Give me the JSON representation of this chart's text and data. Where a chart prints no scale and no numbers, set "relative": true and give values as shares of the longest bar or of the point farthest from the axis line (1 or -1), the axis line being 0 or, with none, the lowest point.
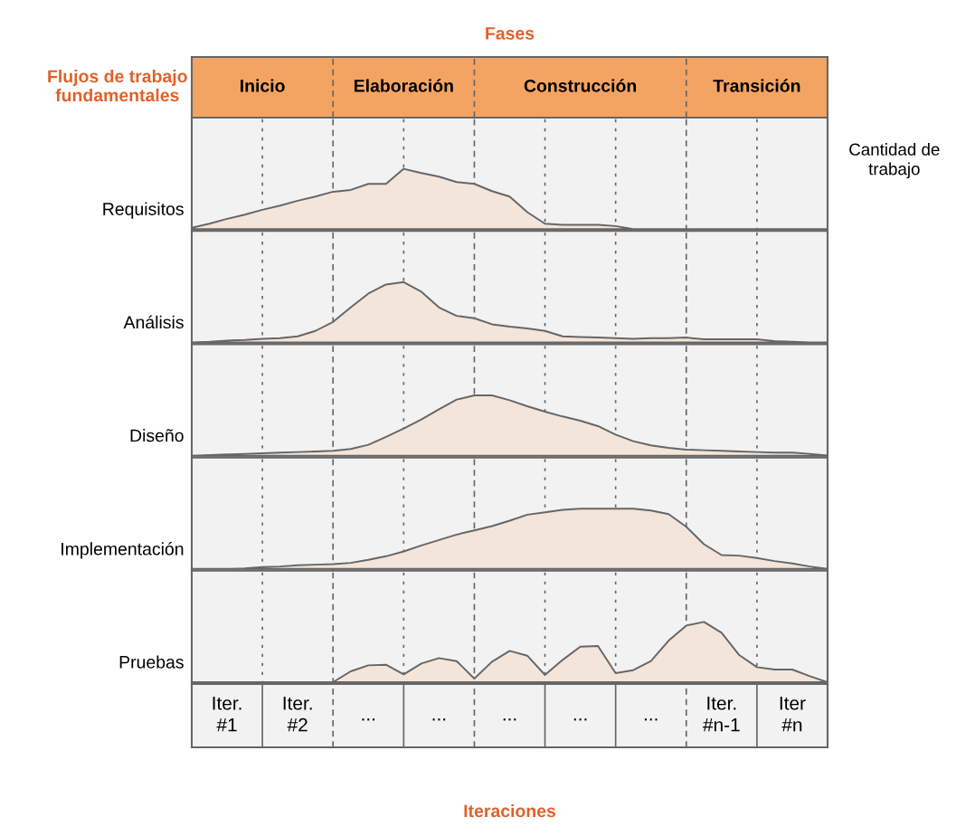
{
  "chart_data": [
    {
      "type": "other",
      "title": "Fases",
      "annotations": [
        "Flujos de trabajo fundamentales",
        "Inicio",
        "Elaboración",
        "Construcción",
        "Transición"
      ]
    },
    {
      "type": "area",
      "relative": true,
      "ylabel": "Requisitos",
      "annotations": [
        "Cantidad de trabajo"
      ],
      "grid": "x",
      "categories": [
        null,
        null,
        null,
        null,
        null,
        null,
        null,
        null,
        null,
        null,
        null,
        null,
        null,
        null,
        null,
        null,
        null,
        null,
        null,
        null,
        null,
        null,
        null,
        null,
        null,
        null,
        null,
        null,
        null,
        null,
        null,
        null,
        null,
        null,
        null,
        null,
        null
      ],
      "series": [
        {
          "color": "#f3e5d9",
          "values": [
            0.02,
            0.09,
            0.17,
            0.24,
            0.32,
            0.39,
            0.47,
            0.54,
            0.62,
            0.65,
            0.75,
            0.75,
            1.0,
            0.93,
            0.87,
            0.78,
            0.75,
            0.63,
            0.54,
            0.28,
            0.09,
            0.07,
            0.07,
            0.07,
            0.05,
            0,
            0,
            0,
            0,
            0,
            0,
            0,
            0,
            0,
            0,
            0,
            0
          ]
        }
      ]
    },
    {
      "type": "area",
      "relative": true,
      "ylabel": "Análisis",
      "grid": "x",
      "categories": [
        null,
        null,
        null,
        null,
        null,
        null,
        null,
        null,
        null,
        null,
        null,
        null,
        null,
        null,
        null,
        null,
        null,
        null,
        null,
        null,
        null,
        null,
        null,
        null,
        null,
        null,
        null,
        null,
        null,
        null,
        null,
        null,
        null,
        null,
        null,
        null,
        null
      ],
      "series": [
        {
          "color": "#f3e5d9",
          "values": [
            0,
            0.01,
            0.03,
            0.04,
            0.06,
            0.07,
            0.1,
            0.19,
            0.34,
            0.58,
            0.81,
            0.96,
            1.0,
            0.84,
            0.58,
            0.44,
            0.4,
            0.3,
            0.26,
            0.23,
            0.19,
            0.1,
            0.09,
            0.08,
            0.07,
            0.06,
            0.07,
            0.07,
            0.08,
            0.05,
            0.05,
            0.05,
            0.05,
            0.02,
            0.01,
            0,
            0
          ]
        }
      ]
    },
    {
      "type": "area",
      "relative": true,
      "ylabel": "Diseño",
      "grid": "x",
      "categories": [
        null,
        null,
        null,
        null,
        null,
        null,
        null,
        null,
        null,
        null,
        null,
        null,
        null,
        null,
        null,
        null,
        null,
        null,
        null,
        null,
        null,
        null,
        null,
        null,
        null,
        null,
        null,
        null,
        null,
        null,
        null,
        null,
        null,
        null,
        null,
        null,
        null
      ],
      "series": [
        {
          "color": "#f3e5d9",
          "values": [
            0,
            0.01,
            0.02,
            0.03,
            0.04,
            0.05,
            0.06,
            0.07,
            0.08,
            0.11,
            0.18,
            0.31,
            0.45,
            0.6,
            0.77,
            0.93,
            1.0,
            1.0,
            0.92,
            0.82,
            0.73,
            0.65,
            0.58,
            0.49,
            0.35,
            0.24,
            0.17,
            0.13,
            0.1,
            0.09,
            0.08,
            0.07,
            0.06,
            0.05,
            0.05,
            0.03,
            0
          ]
        }
      ]
    },
    {
      "type": "area",
      "relative": true,
      "ylabel": "Implementación",
      "grid": "x",
      "categories": [
        null,
        null,
        null,
        null,
        null,
        null,
        null,
        null,
        null,
        null,
        null,
        null,
        null,
        null,
        null,
        null,
        null,
        null,
        null,
        null,
        null,
        null,
        null,
        null,
        null,
        null,
        null,
        null,
        null,
        null,
        null,
        null,
        null,
        null,
        null,
        null,
        null
      ],
      "series": [
        {
          "color": "#f3e5d9",
          "values": [
            0,
            0,
            0,
            0.01,
            0.03,
            0.04,
            0.06,
            0.07,
            0.08,
            0.1,
            0.15,
            0.21,
            0.29,
            0.39,
            0.48,
            0.57,
            0.64,
            0.71,
            0.8,
            0.9,
            0.94,
            0.98,
            1.0,
            1.0,
            1.0,
            1.0,
            0.97,
            0.91,
            0.7,
            0.41,
            0.23,
            0.22,
            0.18,
            0.13,
            0.09,
            0.04,
            0
          ]
        }
      ]
    },
    {
      "type": "area",
      "relative": true,
      "ylabel": "Pruebas",
      "grid": "x",
      "categories": [
        null,
        null,
        null,
        null,
        null,
        null,
        null,
        null,
        null,
        null,
        null,
        null,
        null,
        null,
        null,
        null,
        null,
        null,
        null,
        null,
        null,
        null,
        null,
        null,
        null,
        null,
        null,
        null,
        null,
        null,
        null,
        null,
        null,
        null,
        null,
        null,
        null
      ],
      "series": [
        {
          "color": "#f3e5d9",
          "values": [
            0,
            0,
            0,
            0,
            0,
            0,
            0,
            0,
            0,
            0.18,
            0.28,
            0.29,
            0.13,
            0.31,
            0.4,
            0.35,
            0.06,
            0.34,
            0.52,
            0.44,
            0.12,
            0.37,
            0.59,
            0.6,
            0.15,
            0.2,
            0.35,
            0.69,
            0.94,
            1.0,
            0.82,
            0.45,
            0.25,
            0.21,
            0.21,
            0.1,
            0
          ]
        }
      ]
    },
    {
      "type": "other",
      "xlabel": "Iteraciones",
      "annotations": [
        "Iter.\n#1",
        "Iter.\n#2",
        "...",
        "...",
        "...",
        "...",
        "...",
        "Iter.\n#n-1",
        "Iter\n#n"
      ]
    }
  ]
}
